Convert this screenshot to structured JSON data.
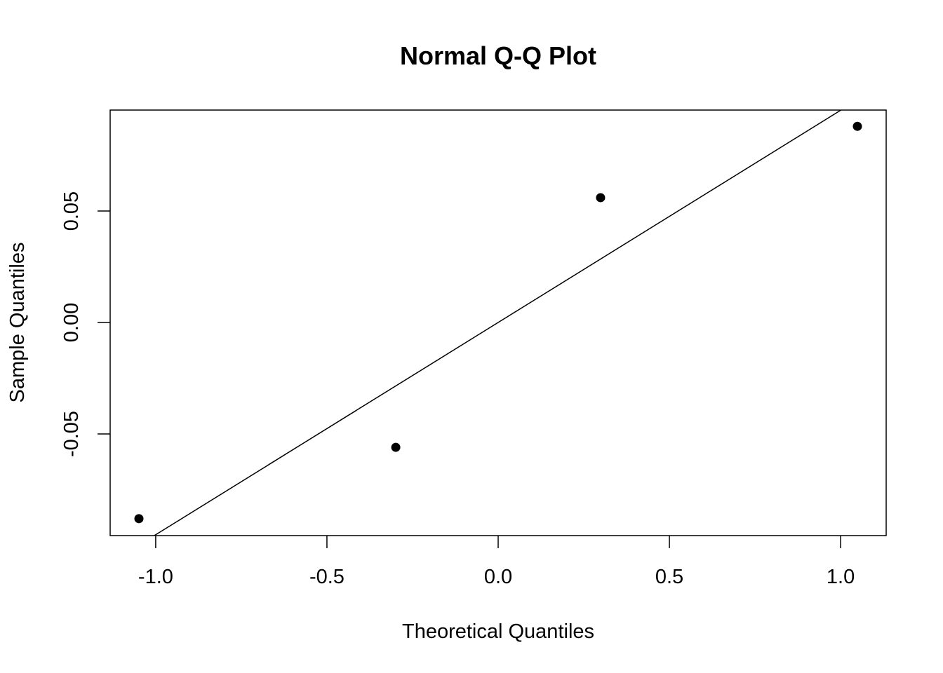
{
  "chart_data": {
    "type": "scatter",
    "title": "Normal Q-Q Plot",
    "xlabel": "Theoretical Quantiles",
    "ylabel": "Sample Quantiles",
    "xlim": [
      -1.133,
      1.133
    ],
    "ylim": [
      -0.0956,
      0.0953
    ],
    "xticks": [
      -1.0,
      -0.5,
      0.0,
      0.5,
      1.0
    ],
    "xtick_labels": [
      "-1.0",
      "-0.5",
      "0.0",
      "0.5",
      "1.0"
    ],
    "yticks": [
      -0.05,
      0.0,
      0.05
    ],
    "ytick_labels": [
      "-0.05",
      "0.00",
      "0.05"
    ],
    "points": {
      "x": [
        -1.049,
        -0.299,
        0.299,
        1.049
      ],
      "y": [
        -0.088,
        -0.056,
        0.056,
        0.088
      ]
    },
    "reference_line": {
      "intercept": 0.0,
      "slope": 0.0952
    },
    "grid": false,
    "legend": "none",
    "point_color": "#000000",
    "line_color": "#000000"
  }
}
